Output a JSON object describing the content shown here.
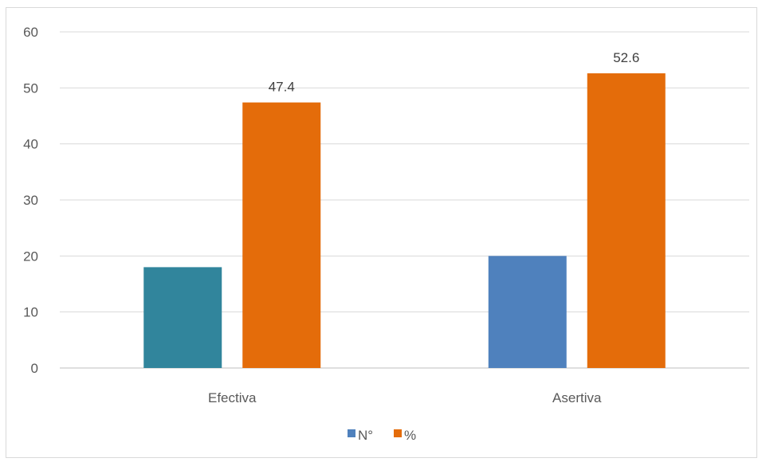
{
  "chart_data": {
    "type": "bar",
    "categories": [
      "Efectiva",
      "Asertiva"
    ],
    "series": [
      {
        "name": "N°",
        "values": [
          18,
          20
        ],
        "color": "#4f81bd",
        "point_colors": [
          "#31859c",
          "#4f81bd"
        ]
      },
      {
        "name": "%",
        "values": [
          47.4,
          52.6
        ],
        "color": "#e46c0a",
        "data_labels": [
          "47.4",
          "52.6"
        ]
      }
    ],
    "ylim": [
      0,
      60
    ],
    "yticks": [
      0,
      10,
      20,
      30,
      40,
      50,
      60
    ],
    "grid": true,
    "legend_position": "bottom",
    "title": "",
    "xlabel": "",
    "ylabel": ""
  }
}
